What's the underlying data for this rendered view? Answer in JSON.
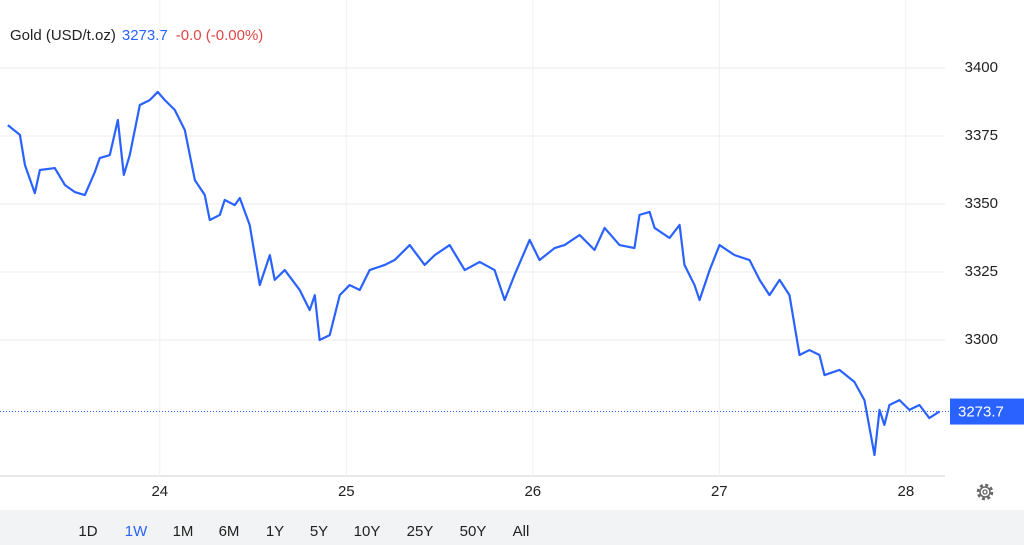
{
  "header": {
    "instrument": "Gold (USD/t.oz)",
    "last_price": 3273.7,
    "change": "-0.0 (-0.00%)"
  },
  "chart_data": {
    "type": "line",
    "x": [
      23.185,
      23.25,
      23.277,
      23.33,
      23.357,
      23.437,
      23.491,
      23.544,
      23.598,
      23.652,
      23.678,
      23.732,
      23.775,
      23.807,
      23.839,
      23.893,
      23.946,
      23.989,
      24.027,
      24.08,
      24.134,
      24.188,
      24.241,
      24.268,
      24.322,
      24.348,
      24.402,
      24.429,
      24.482,
      24.536,
      24.59,
      24.616,
      24.67,
      24.75,
      24.804,
      24.831,
      24.857,
      24.911,
      24.965,
      25.018,
      25.072,
      25.125,
      25.206,
      25.259,
      25.34,
      25.42,
      25.474,
      25.554,
      25.635,
      25.715,
      25.795,
      25.849,
      25.902,
      25.983,
      26.036,
      26.117,
      26.17,
      26.251,
      26.331,
      26.385,
      26.465,
      26.545,
      26.572,
      26.626,
      26.653,
      26.733,
      26.787,
      26.813,
      26.867,
      26.894,
      26.948,
      27.001,
      27.082,
      27.162,
      27.216,
      27.269,
      27.323,
      27.376,
      27.43,
      27.483,
      27.537,
      27.564,
      27.644,
      27.724,
      27.778,
      27.832,
      27.859,
      27.885,
      27.912,
      27.966,
      28.019,
      28.073,
      28.126,
      28.18
    ],
    "series": [
      {
        "name": "Gold",
        "color": "#2962ff",
        "values": [
          3379.0,
          3375.4,
          3364.3,
          3354.0,
          3362.5,
          3363.2,
          3357.0,
          3354.4,
          3353.3,
          3361.8,
          3366.9,
          3368.0,
          3380.9,
          3360.7,
          3368.0,
          3386.4,
          3388.2,
          3391.2,
          3388.2,
          3384.6,
          3377.2,
          3358.8,
          3353.3,
          3344.1,
          3346.0,
          3351.5,
          3349.6,
          3352.2,
          3342.3,
          3320.2,
          3331.2,
          3322.1,
          3325.7,
          3318.4,
          3311.0,
          3316.5,
          3300.0,
          3301.8,
          3316.5,
          3320.2,
          3318.4,
          3325.7,
          3327.6,
          3329.4,
          3334.9,
          3327.6,
          3331.2,
          3334.9,
          3325.7,
          3328.7,
          3325.7,
          3314.7,
          3323.9,
          3336.8,
          3329.4,
          3333.8,
          3334.9,
          3338.6,
          3333.1,
          3341.2,
          3334.9,
          3333.8,
          3346.0,
          3347.1,
          3341.2,
          3337.5,
          3342.3,
          3327.6,
          3320.2,
          3314.7,
          3325.7,
          3334.9,
          3331.2,
          3329.4,
          3322.1,
          3316.5,
          3322.1,
          3316.5,
          3294.5,
          3296.3,
          3294.5,
          3287.1,
          3289.0,
          3284.6,
          3277.9,
          3257.7,
          3274.3,
          3268.8,
          3276.1,
          3277.9,
          3274.3,
          3276.1,
          3271.3,
          3273.7
        ]
      }
    ],
    "xlim": [
      23.17,
      28.21
    ],
    "xticks": [
      24,
      25,
      26,
      27,
      28
    ],
    "ylim": [
      3250,
      3425
    ],
    "yticks": [
      3300,
      3325,
      3350,
      3375,
      3400
    ],
    "grid": true
  },
  "ranges": {
    "items": [
      "1D",
      "1W",
      "1M",
      "6M",
      "1Y",
      "5Y",
      "10Y",
      "25Y",
      "50Y",
      "All"
    ],
    "active_index": 1
  }
}
